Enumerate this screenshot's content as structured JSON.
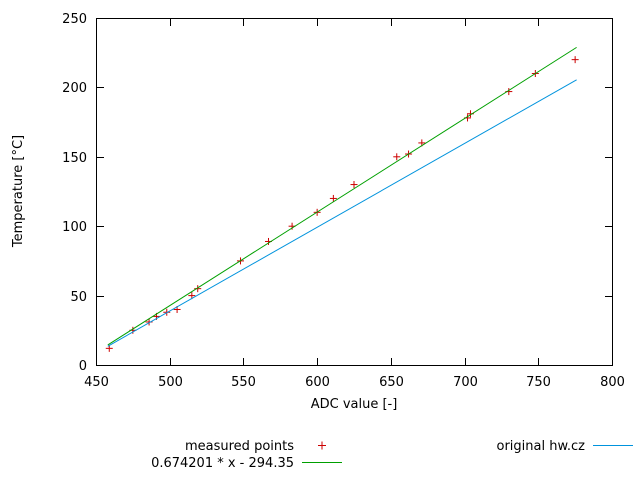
{
  "chart_data": {
    "type": "scatter",
    "title": "",
    "xlabel": "ADC value [-]",
    "ylabel": "Temperature [°C]",
    "xlim": [
      450,
      800
    ],
    "ylim": [
      0,
      250
    ],
    "xticks": [
      450,
      500,
      550,
      600,
      650,
      700,
      750,
      800
    ],
    "yticks": [
      0,
      50,
      100,
      150,
      200,
      250
    ],
    "grid": false,
    "legend_position": "below-plot",
    "series": [
      {
        "name": "measured points",
        "type": "points",
        "marker": "plus",
        "color": "#cc0000",
        "points": [
          [
            459,
            12
          ],
          [
            475,
            25
          ],
          [
            486,
            31
          ],
          [
            491,
            35
          ],
          [
            498,
            38
          ],
          [
            505,
            40
          ],
          [
            515,
            50
          ],
          [
            519,
            55
          ],
          [
            548,
            75
          ],
          [
            567,
            89
          ],
          [
            583,
            100
          ],
          [
            600,
            110
          ],
          [
            611,
            120
          ],
          [
            625,
            130
          ],
          [
            654,
            150
          ],
          [
            662,
            152
          ],
          [
            671,
            160
          ],
          [
            702,
            178
          ],
          [
            704,
            181
          ],
          [
            730,
            197
          ],
          [
            748,
            210
          ],
          [
            775,
            220
          ]
        ]
      },
      {
        "name": "0.674201 * x - 294.35",
        "type": "line",
        "color": "#00a000",
        "slope": 0.674201,
        "intercept": -294.35,
        "x_range": [
          458,
          776
        ]
      },
      {
        "name": "original hw.cz",
        "type": "line",
        "color": "#0093dd",
        "points": [
          [
            458,
            13.5
          ],
          [
            776,
            205.5
          ]
        ]
      }
    ]
  }
}
